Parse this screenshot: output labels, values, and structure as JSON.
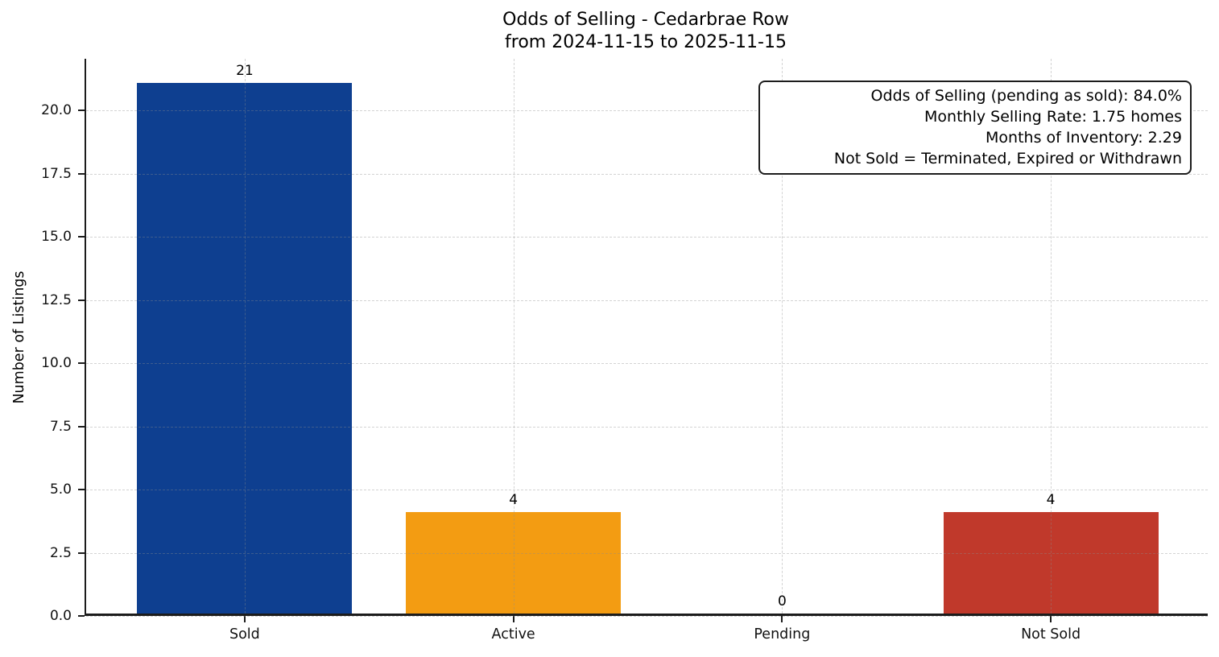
{
  "chart_data": {
    "type": "bar",
    "title": "Odds of Selling - Cedarbrae Row from 2024-11-15 to 2025-11-15",
    "title_lines": [
      "Odds of Selling - Cedarbrae Row",
      "from 2024-11-15 to 2025-11-15"
    ],
    "categories": [
      "Sold",
      "Active",
      "Pending",
      "Not Sold"
    ],
    "values": [
      21,
      4,
      0,
      4
    ],
    "bar_labels": [
      "21",
      "4",
      "0",
      "4"
    ],
    "bar_colors": [
      "#0e3f90",
      "#f39c12",
      null,
      "#c0392b"
    ],
    "xlabel": "",
    "ylabel": "Number of Listings",
    "ylim": [
      0,
      22.05
    ],
    "xlim": [
      -0.59,
      3.59
    ],
    "bar_width": 0.8,
    "yticks": [
      0,
      2.5,
      5,
      7.5,
      10,
      12.5,
      15,
      17.5,
      20
    ],
    "ytick_labels": [
      "0.0",
      "2.5",
      "5.0",
      "7.5",
      "10.0",
      "12.5",
      "15.0",
      "17.5",
      "20.0"
    ],
    "grid": "dashed, horizontal and vertical",
    "legend_position": "none"
  },
  "annotation": {
    "lines": [
      "Odds of Selling (pending as sold): 84.0%",
      "Monthly Selling Rate: 1.75 homes",
      "Months of Inventory: 2.29",
      "Not Sold = Terminated, Expired or Withdrawn"
    ]
  }
}
